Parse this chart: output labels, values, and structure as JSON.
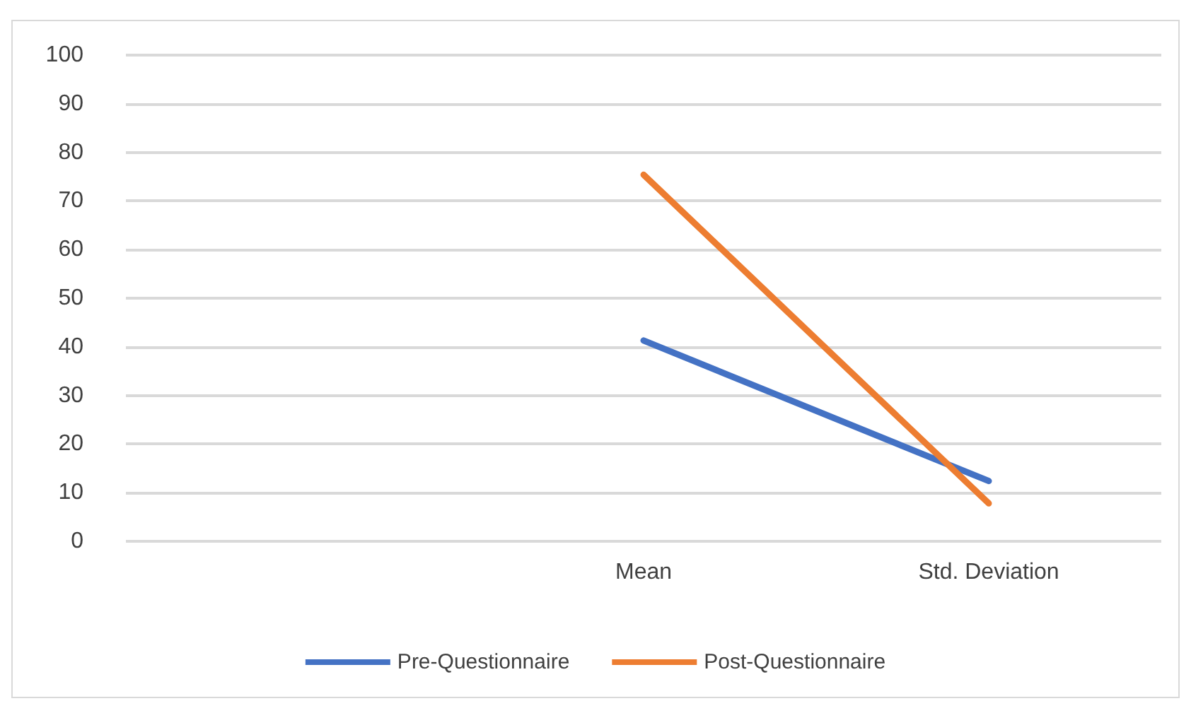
{
  "chart_data": {
    "type": "line",
    "categories": [
      null,
      "Mean",
      "Std. Deviation"
    ],
    "series": [
      {
        "name": "Pre-Questionnaire",
        "color": "#4472c4",
        "values": [
          null,
          41.3,
          12.4
        ]
      },
      {
        "name": "Post-Questionnaire",
        "color": "#ed7d31",
        "values": [
          null,
          75.4,
          7.8
        ]
      }
    ],
    "ylim": [
      0,
      100
    ],
    "yticks": [
      0,
      10,
      20,
      30,
      40,
      50,
      60,
      70,
      80,
      90,
      100
    ],
    "grid": "y",
    "legend": "bottom",
    "marker": "none",
    "line_style": "solid"
  }
}
